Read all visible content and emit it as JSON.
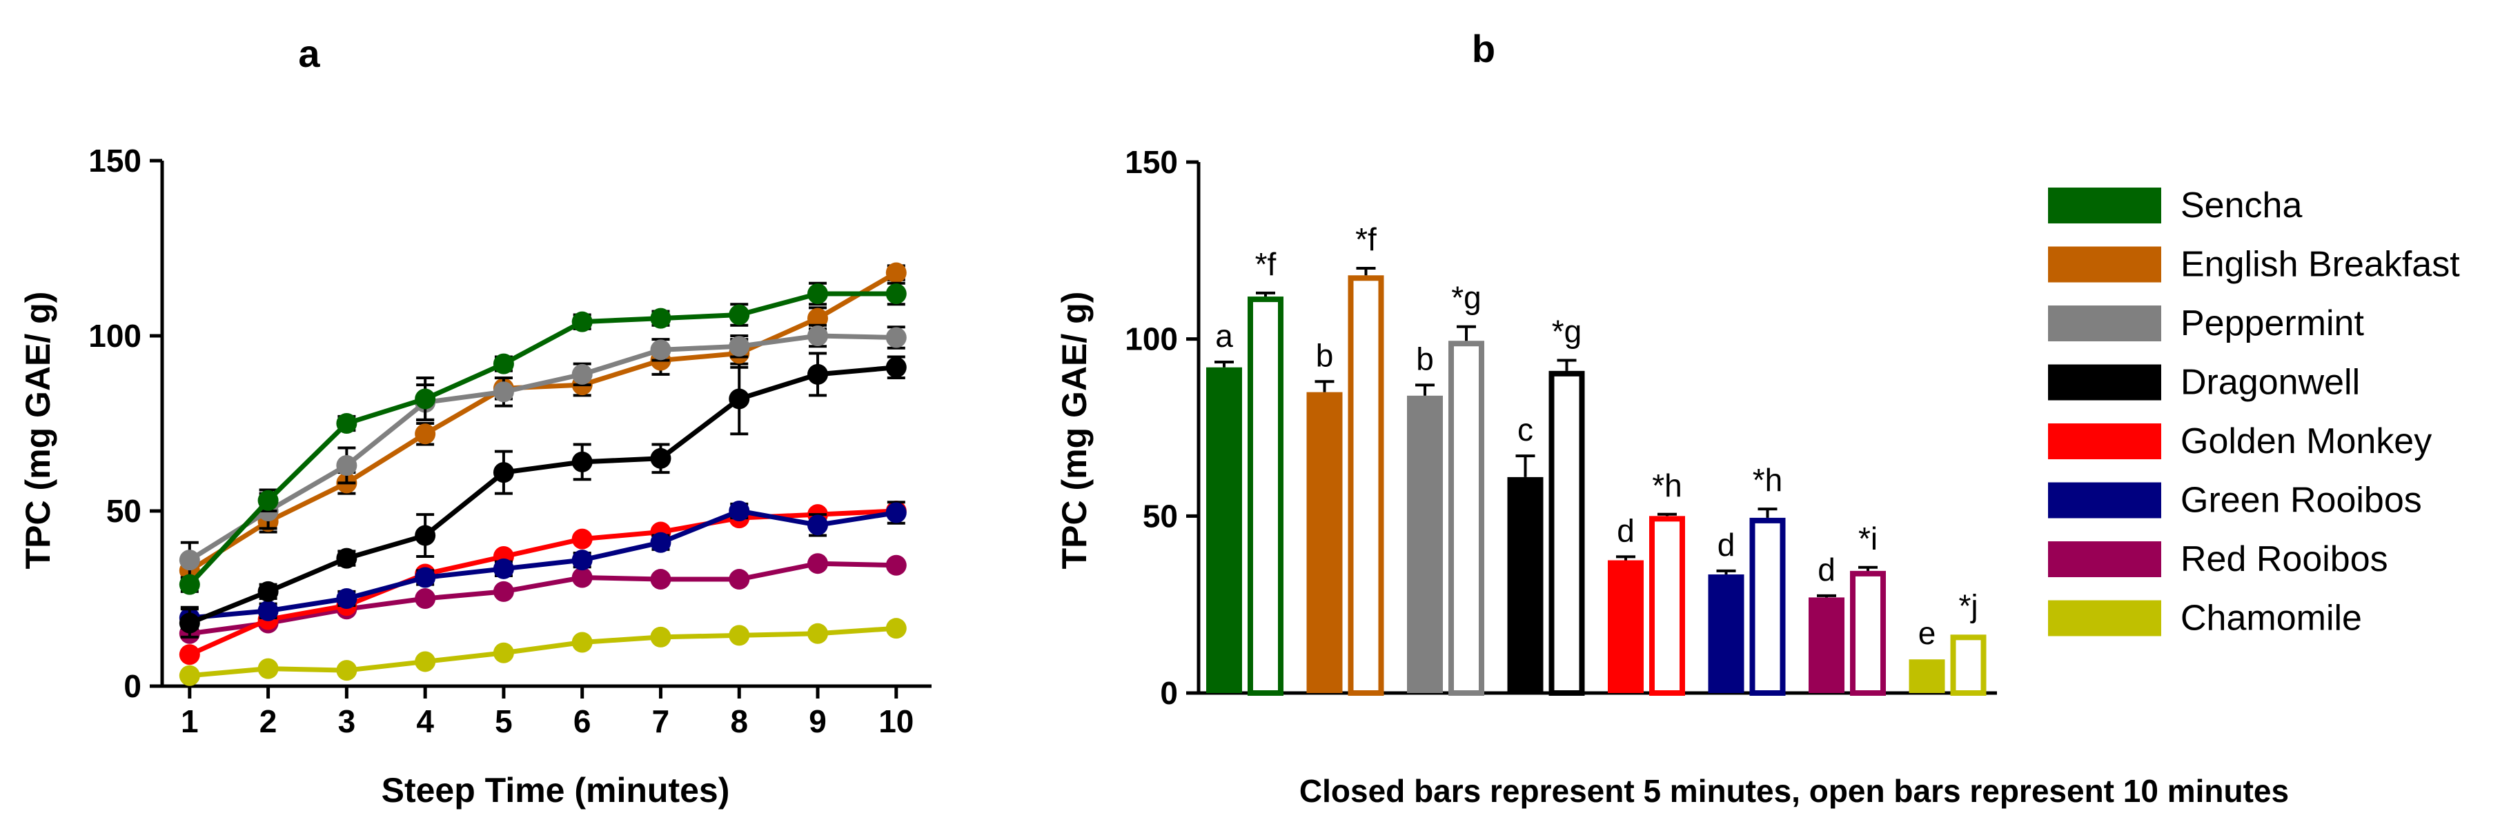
{
  "chart_data": [
    {
      "panel": "a",
      "type": "line",
      "title": "",
      "xlabel": "Steep Time (minutes)",
      "ylabel": "TPC (mg GAE/ g)",
      "xlim": [
        0.65,
        10.45
      ],
      "ylim": [
        0,
        150
      ],
      "x": [
        1,
        2,
        3,
        4,
        5,
        6,
        7,
        8,
        9,
        10
      ],
      "xticks": [
        1,
        2,
        3,
        4,
        5,
        6,
        7,
        8,
        9,
        10
      ],
      "yticks": [
        0,
        50,
        100,
        150
      ],
      "series": [
        {
          "name": "Chamomile",
          "color": "#C0C000",
          "values": [
            3,
            5,
            4.5,
            7,
            9.5,
            12.5,
            14,
            14.5,
            15,
            16.5
          ],
          "errors": [
            0,
            0,
            0,
            0,
            0,
            0,
            0,
            0,
            0,
            0
          ]
        },
        {
          "name": "Red Rooibos",
          "color": "#990055",
          "values": [
            15,
            18,
            22,
            25,
            27,
            31,
            30.5,
            30.5,
            35,
            34.5
          ],
          "errors": [
            1,
            1,
            1,
            1,
            1,
            1,
            1,
            1,
            1,
            1
          ]
        },
        {
          "name": "Golden Monkey",
          "color": "#FF0000",
          "values": [
            9,
            19,
            23,
            32,
            37,
            42,
            44,
            48,
            49,
            50
          ],
          "errors": [
            1,
            1,
            1,
            1,
            1,
            1,
            1,
            1,
            1,
            1
          ]
        },
        {
          "name": "Green Rooibos",
          "color": "#000080",
          "values": [
            19.5,
            21.5,
            25,
            31,
            33.5,
            36,
            41,
            50,
            46,
            49.5
          ],
          "errors": [
            3,
            2,
            2,
            2,
            2,
            2,
            2,
            2,
            3,
            3
          ]
        },
        {
          "name": "Dragonwell",
          "color": "#000000",
          "values": [
            18,
            27,
            36.5,
            43,
            61,
            64,
            65,
            82,
            89,
            91
          ],
          "errors": [
            4,
            2,
            2,
            6,
            6,
            5,
            4,
            10,
            6,
            3
          ]
        },
        {
          "name": "English Breakfast",
          "color": "#C06000",
          "values": [
            33,
            47,
            58,
            72,
            85,
            86,
            93,
            95,
            105,
            118
          ],
          "errors": [
            3,
            3,
            3,
            3,
            3,
            3,
            4,
            4,
            3,
            2
          ]
        },
        {
          "name": "Peppermint",
          "color": "#808080",
          "values": [
            36,
            50,
            63,
            81,
            84,
            89,
            96,
            97,
            100,
            99.5
          ],
          "errors": [
            5,
            5,
            5,
            5,
            4,
            3,
            3,
            3,
            3,
            3
          ]
        },
        {
          "name": "Sencha",
          "color": "#006400",
          "values": [
            29,
            53,
            75,
            82,
            92,
            104,
            105,
            106,
            112,
            112
          ],
          "errors": [
            2,
            3,
            2,
            6,
            2,
            2,
            2,
            3,
            3,
            3
          ]
        }
      ]
    },
    {
      "panel": "b",
      "type": "bar",
      "title": "",
      "xlabel": "Closed bars represent 5 minutes, open bars represent 10 minutes",
      "ylabel": "TPC (mg GAE/ g)",
      "ylim": [
        0,
        150
      ],
      "yticks": [
        0,
        50,
        100,
        150
      ],
      "categories": [
        "Sencha",
        "English Breakfast",
        "Peppermint",
        "Dragonwell",
        "Golden Monkey",
        "Green Rooibos",
        "Red Rooibos",
        "Chamomile"
      ],
      "colors": [
        "#006400",
        "#C06000",
        "#808080",
        "#000000",
        "#FF0000",
        "#000080",
        "#990055",
        "#C0C000"
      ],
      "series": [
        {
          "name": "5 minutes",
          "style": "closed",
          "values": [
            92,
            85,
            84,
            61,
            37.5,
            33.5,
            27,
            9.5
          ],
          "errors": [
            1.5,
            3,
            3,
            6,
            1,
            1,
            0.5,
            0
          ],
          "labels": [
            "a",
            "b",
            "b",
            "c",
            "d",
            "d",
            "d",
            "e"
          ]
        },
        {
          "name": "10 minutes",
          "style": "open",
          "values": [
            112,
            118,
            99.5,
            91,
            50,
            49.5,
            34.5,
            16.5
          ],
          "errors": [
            1,
            2,
            4,
            3,
            0.5,
            2.5,
            1,
            0
          ],
          "labels": [
            "*f",
            "*f",
            "*g",
            "*g",
            "*h",
            "*h",
            "*i",
            "*j"
          ]
        }
      ],
      "legend": {
        "placement": "right",
        "entries": [
          "Sencha",
          "English Breakfast",
          "Peppermint",
          "Dragonwell",
          "Golden Monkey",
          "Green Rooibos",
          "Red Rooibos",
          "Chamomile"
        ]
      }
    }
  ]
}
